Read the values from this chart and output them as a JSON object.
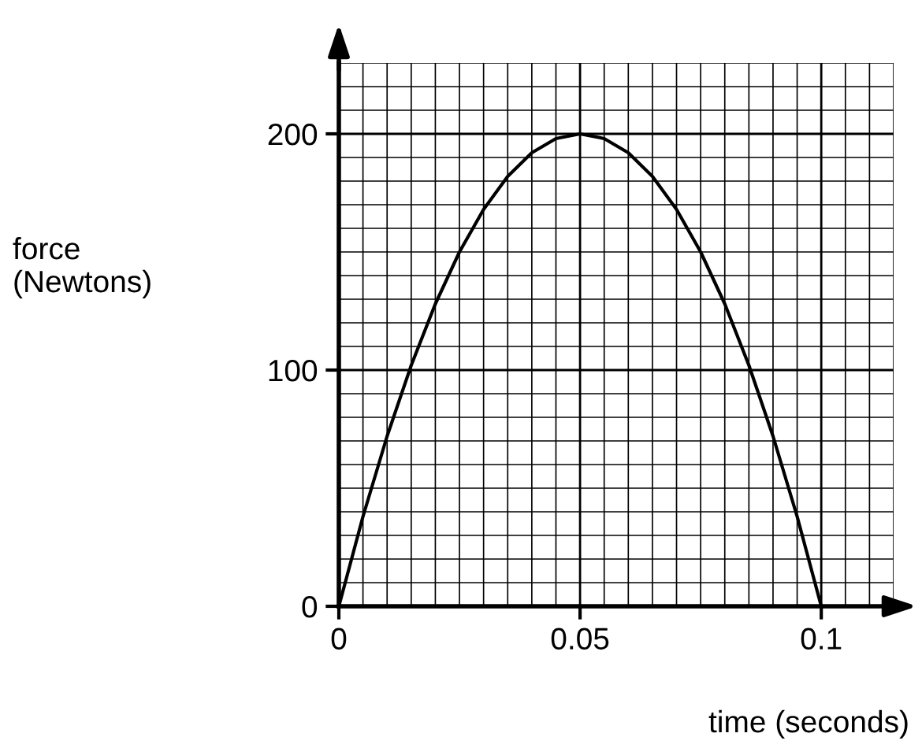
{
  "chart_data": {
    "type": "line",
    "xlabel": "time (seconds)",
    "ylabel": "force\n(Newtons)",
    "x": [
      0,
      0.005,
      0.01,
      0.015,
      0.02,
      0.025,
      0.03,
      0.035,
      0.04,
      0.045,
      0.05,
      0.055,
      0.06,
      0.065,
      0.07,
      0.075,
      0.08,
      0.085,
      0.09,
      0.095,
      0.1
    ],
    "series": [
      {
        "color": "#000000",
        "values": [
          0,
          38,
          72,
          102,
          128,
          150,
          168,
          182,
          192,
          198,
          200,
          198,
          192,
          182,
          168,
          150,
          128,
          102,
          72,
          38,
          0
        ]
      }
    ],
    "xlim": [
      0,
      0.115
    ],
    "ylim": [
      0,
      230
    ],
    "xticks": [
      0,
      0.05,
      0.1
    ],
    "yticks": [
      0,
      100,
      200
    ],
    "grid": true,
    "marker": "none",
    "line_style": "solid"
  }
}
